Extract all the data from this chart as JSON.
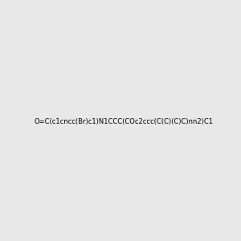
{
  "smiles": "O=C(c1cncc(Br)c1)N1CCC(COc2ccc(C(C)(C)C)nn2)C1",
  "img_size": [
    300,
    300
  ],
  "background_color": "#e8e8e8",
  "atom_colors": {
    "N": "blue",
    "O": "red",
    "Br": "#cc7700"
  },
  "title": ""
}
